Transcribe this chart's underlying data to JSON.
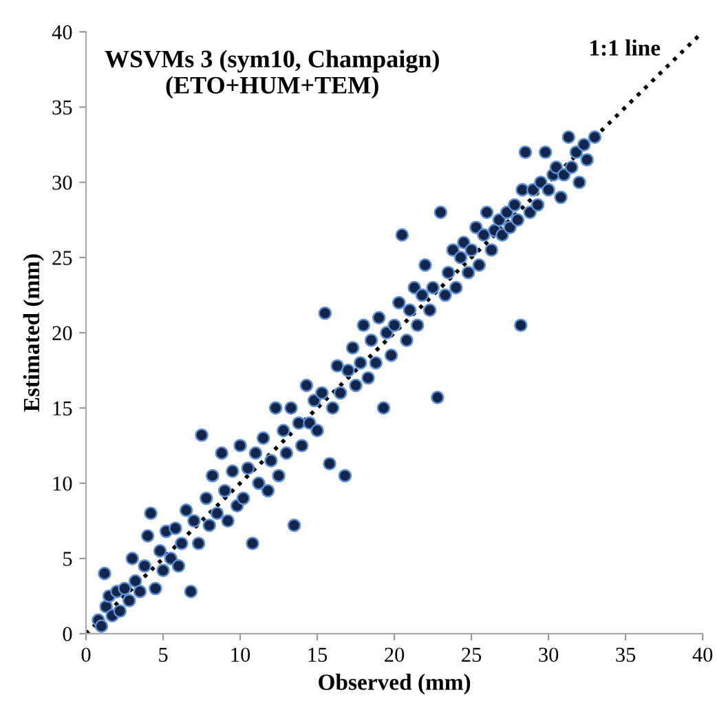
{
  "chart_data": {
    "type": "scatter",
    "title": "WSVMs 3 (sym10, Champaign)\n(ETO+HUM+TEM)",
    "xlabel": "Observed (mm)",
    "ylabel": "Estimated (mm)",
    "xlim": [
      0,
      40
    ],
    "ylim": [
      0,
      40
    ],
    "xticks": [
      0,
      5,
      10,
      15,
      20,
      25,
      30,
      35,
      40
    ],
    "yticks": [
      0,
      5,
      10,
      15,
      20,
      25,
      30,
      35,
      40
    ],
    "grid": false,
    "legend": false,
    "series": [
      {
        "color": "#13254a",
        "marker": "circle",
        "x": [
          0.8,
          1.0,
          1.2,
          1.3,
          1.5,
          1.7,
          2.0,
          2.2,
          2.5,
          2.8,
          3.0,
          3.2,
          3.5,
          3.8,
          4.0,
          4.2,
          4.5,
          4.8,
          5.0,
          5.2,
          5.5,
          5.8,
          6.0,
          6.2,
          6.5,
          6.8,
          7.0,
          7.3,
          7.5,
          7.8,
          8.0,
          8.2,
          8.5,
          8.8,
          9.0,
          9.2,
          9.5,
          9.8,
          10.0,
          10.2,
          10.5,
          10.8,
          11.0,
          11.2,
          11.5,
          11.8,
          12.0,
          12.3,
          12.5,
          12.8,
          13.0,
          13.3,
          13.5,
          13.8,
          14.0,
          14.3,
          14.5,
          14.8,
          15.0,
          15.3,
          15.5,
          15.8,
          16.0,
          16.3,
          16.5,
          16.8,
          17.0,
          17.3,
          17.5,
          17.8,
          18.0,
          18.3,
          18.5,
          18.8,
          19.0,
          19.3,
          19.5,
          19.8,
          20.0,
          20.3,
          20.5,
          20.8,
          21.0,
          21.3,
          21.5,
          21.8,
          22.0,
          22.3,
          22.5,
          22.8,
          23.0,
          23.3,
          23.5,
          23.8,
          24.0,
          24.3,
          24.5,
          24.8,
          25.0,
          25.3,
          25.5,
          25.8,
          26.0,
          26.3,
          26.5,
          26.8,
          27.0,
          27.3,
          27.5,
          27.8,
          28.0,
          28.2,
          28.3,
          28.5,
          28.8,
          29.0,
          29.3,
          29.5,
          29.8,
          30.0,
          30.3,
          30.5,
          30.8,
          31.0,
          31.3,
          31.5,
          31.8,
          32.0,
          32.3,
          32.5,
          33.0
        ],
        "values": [
          0.9,
          0.5,
          4.0,
          1.8,
          2.5,
          1.2,
          2.8,
          1.5,
          3.0,
          2.2,
          5.0,
          3.5,
          2.8,
          4.5,
          6.5,
          8.0,
          3.0,
          5.5,
          4.2,
          6.8,
          5.0,
          7.0,
          4.5,
          6.0,
          8.2,
          2.8,
          7.5,
          6.0,
          13.2,
          9.0,
          7.2,
          10.5,
          8.0,
          12.0,
          9.5,
          7.5,
          10.8,
          8.5,
          12.5,
          9.0,
          11.0,
          6.0,
          12.0,
          10.0,
          13.0,
          9.5,
          11.5,
          15.0,
          10.5,
          13.5,
          12.0,
          15.0,
          7.2,
          14.0,
          12.5,
          16.5,
          14.0,
          15.5,
          13.5,
          16.0,
          21.3,
          11.3,
          15.0,
          17.8,
          16.0,
          10.5,
          17.5,
          19.0,
          16.5,
          18.0,
          20.5,
          17.0,
          19.5,
          18.0,
          21.0,
          15.0,
          20.0,
          18.5,
          20.5,
          22.0,
          26.5,
          19.5,
          21.5,
          23.0,
          20.5,
          22.5,
          24.5,
          21.5,
          23.0,
          15.7,
          28.0,
          22.5,
          24.0,
          25.5,
          23.0,
          25.0,
          26.0,
          24.0,
          25.5,
          27.0,
          24.5,
          26.5,
          28.0,
          25.5,
          26.8,
          27.5,
          26.5,
          28.0,
          27.0,
          28.5,
          27.5,
          20.5,
          29.5,
          32.0,
          28.0,
          29.5,
          28.5,
          30.0,
          32.0,
          29.5,
          30.5,
          31.0,
          29.0,
          30.5,
          33.0,
          31.0,
          32.0,
          30.0,
          32.5,
          31.5,
          33.0
        ]
      },
      {
        "type": "line",
        "name": "1:1 line",
        "color": "#000000",
        "line_style": "dotted",
        "marker": "none",
        "x": [
          0,
          40
        ],
        "values": [
          0,
          40
        ]
      }
    ]
  }
}
